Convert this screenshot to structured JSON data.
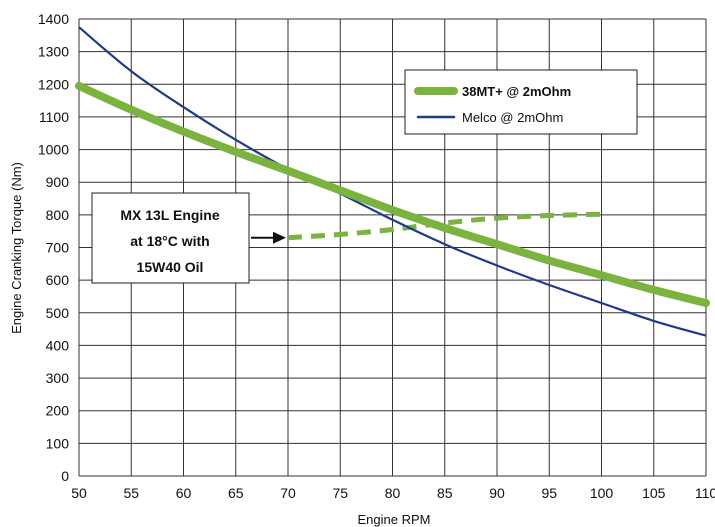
{
  "chart_data": {
    "type": "line",
    "xlabel": "Engine RPM",
    "ylabel": "Engine Cranking Torque (Nm)",
    "xlim": [
      50,
      110
    ],
    "ylim": [
      0,
      1400
    ],
    "x_ticks": [
      50,
      55,
      60,
      65,
      70,
      75,
      80,
      85,
      90,
      95,
      100,
      105,
      110
    ],
    "y_ticks": [
      0,
      100,
      200,
      300,
      400,
      500,
      600,
      700,
      800,
      900,
      1000,
      1100,
      1200,
      1300,
      1400
    ],
    "grid": true,
    "legend_position": "top-right",
    "series": [
      {
        "name": "38MT+ @ 2mOhm",
        "color": "#7ab33e",
        "style": "thick",
        "x": [
          50,
          55,
          60,
          65,
          70,
          75,
          80,
          85,
          90,
          95,
          100,
          105,
          110
        ],
        "y": [
          1195,
          1122,
          1055,
          993,
          935,
          875,
          815,
          760,
          710,
          660,
          615,
          570,
          530
        ]
      },
      {
        "name": "Melco @ 2mOhm",
        "color": "#1f3a8f",
        "style": "thin",
        "x": [
          50,
          55,
          60,
          65,
          70,
          75,
          80,
          85,
          90,
          95,
          100,
          105,
          110
        ],
        "y": [
          1375,
          1240,
          1130,
          1030,
          940,
          865,
          785,
          710,
          645,
          585,
          530,
          475,
          430
        ]
      }
    ],
    "engine_requirement": {
      "color": "#7ab33e",
      "style": "dashed",
      "x": [
        70,
        75,
        80,
        85,
        90,
        95,
        100
      ],
      "y": [
        730,
        740,
        755,
        775,
        790,
        798,
        802
      ]
    },
    "annotation": {
      "lines": [
        "MX 13L Engine",
        "at 18°C with",
        "15W40 Oil"
      ],
      "arrow_to": [
        70,
        730
      ]
    }
  }
}
